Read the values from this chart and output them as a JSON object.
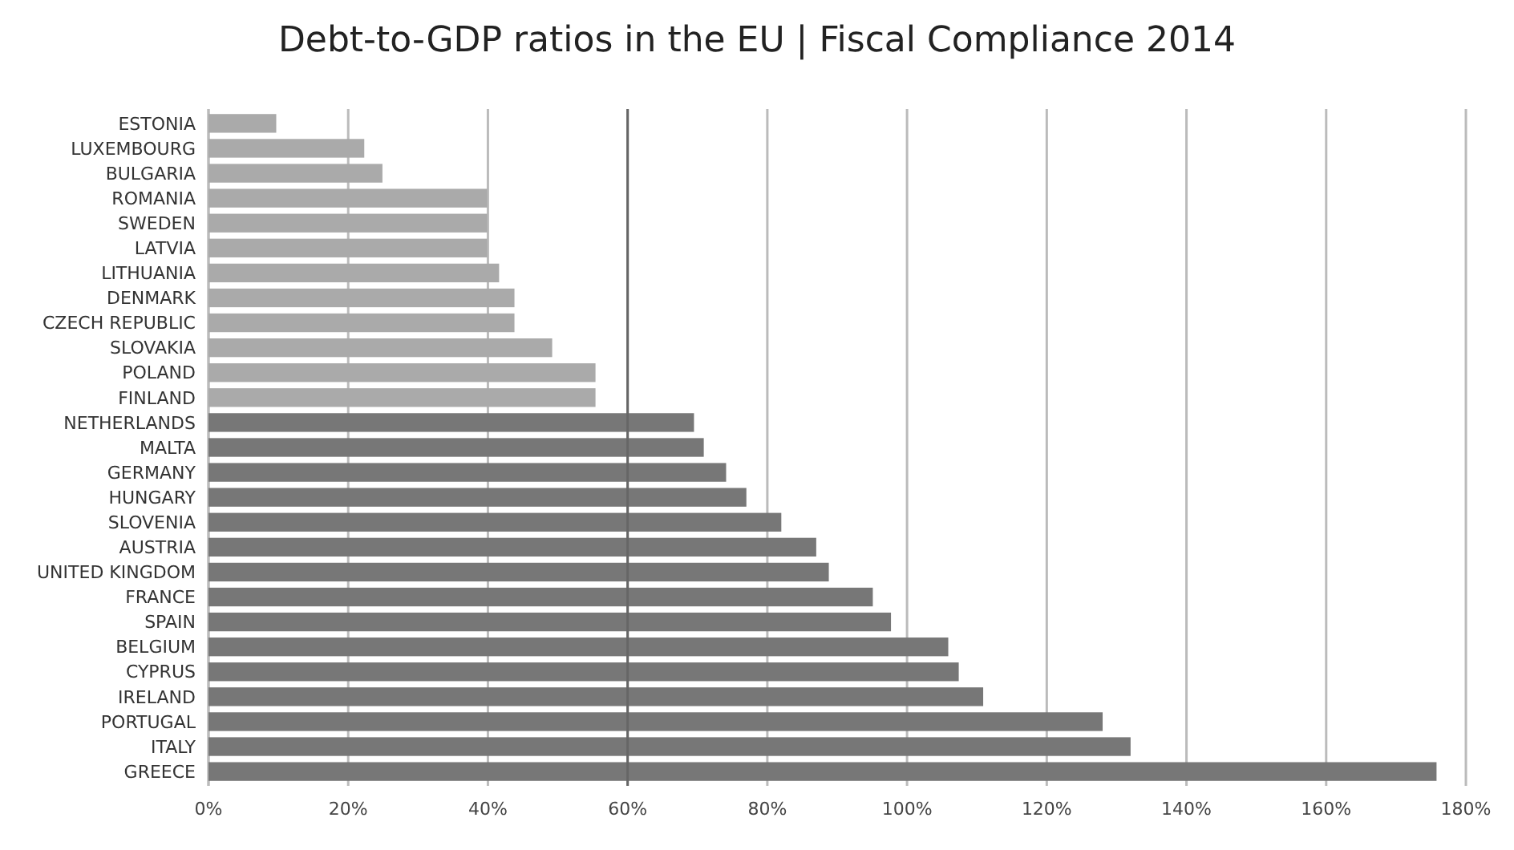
{
  "chart_data": {
    "type": "bar",
    "orientation": "horizontal",
    "title": "Debt-to-GDP ratios in the EU  |  Fiscal Compliance 2014",
    "categories": [
      "ESTONIA",
      "LUXEMBOURG",
      "BULGARIA",
      "ROMANIA",
      "SWEDEN",
      "LATVIA",
      "LITHUANIA",
      "DENMARK",
      "CZECH REPUBLIC",
      "SLOVAKIA",
      "POLAND",
      "FINLAND",
      "NETHERLANDS",
      "MALTA",
      "GERMANY",
      "HUNGARY",
      "SLOVENIA",
      "AUSTRIA",
      "UNITED KINGDOM",
      "FRANCE",
      "SPAIN",
      "BELGIUM",
      "CYPRUS",
      "IRELAND",
      "PORTUGAL",
      "ITALY",
      "GREECE"
    ],
    "values": [
      9.7,
      22.3,
      24.9,
      39.9,
      39.9,
      39.9,
      41.6,
      43.8,
      43.8,
      49.2,
      55.4,
      55.4,
      69.5,
      70.9,
      74.1,
      77,
      82,
      87,
      88.8,
      95.1,
      97.7,
      105.9,
      107.4,
      110.9,
      128,
      132,
      175.8
    ],
    "colors": [
      "#aaaaaa",
      "#aaaaaa",
      "#aaaaaa",
      "#aaaaaa",
      "#aaaaaa",
      "#aaaaaa",
      "#aaaaaa",
      "#aaaaaa",
      "#aaaaaa",
      "#aaaaaa",
      "#aaaaaa",
      "#aaaaaa",
      "#777777",
      "#777777",
      "#777777",
      "#777777",
      "#777777",
      "#777777",
      "#777777",
      "#777777",
      "#777777",
      "#777777",
      "#777777",
      "#777777",
      "#777777",
      "#777777",
      "#777777"
    ],
    "xlim": [
      0,
      180
    ],
    "xticks": [
      {
        "value": 0,
        "label": "0%"
      },
      {
        "value": 20,
        "label": "20%"
      },
      {
        "value": 40,
        "label": "40%"
      },
      {
        "value": 60,
        "label": "60%"
      },
      {
        "value": 80,
        "label": "80%"
      },
      {
        "value": 100,
        "label": "100%"
      },
      {
        "value": 120,
        "label": "120%"
      },
      {
        "value": 140,
        "label": "140%"
      },
      {
        "value": 160,
        "label": "160%"
      },
      {
        "value": 180,
        "label": "180%"
      }
    ],
    "grid": "x",
    "ref_lines": [
      {
        "axis": "x",
        "value": 60,
        "color": "#666666"
      }
    ]
  }
}
